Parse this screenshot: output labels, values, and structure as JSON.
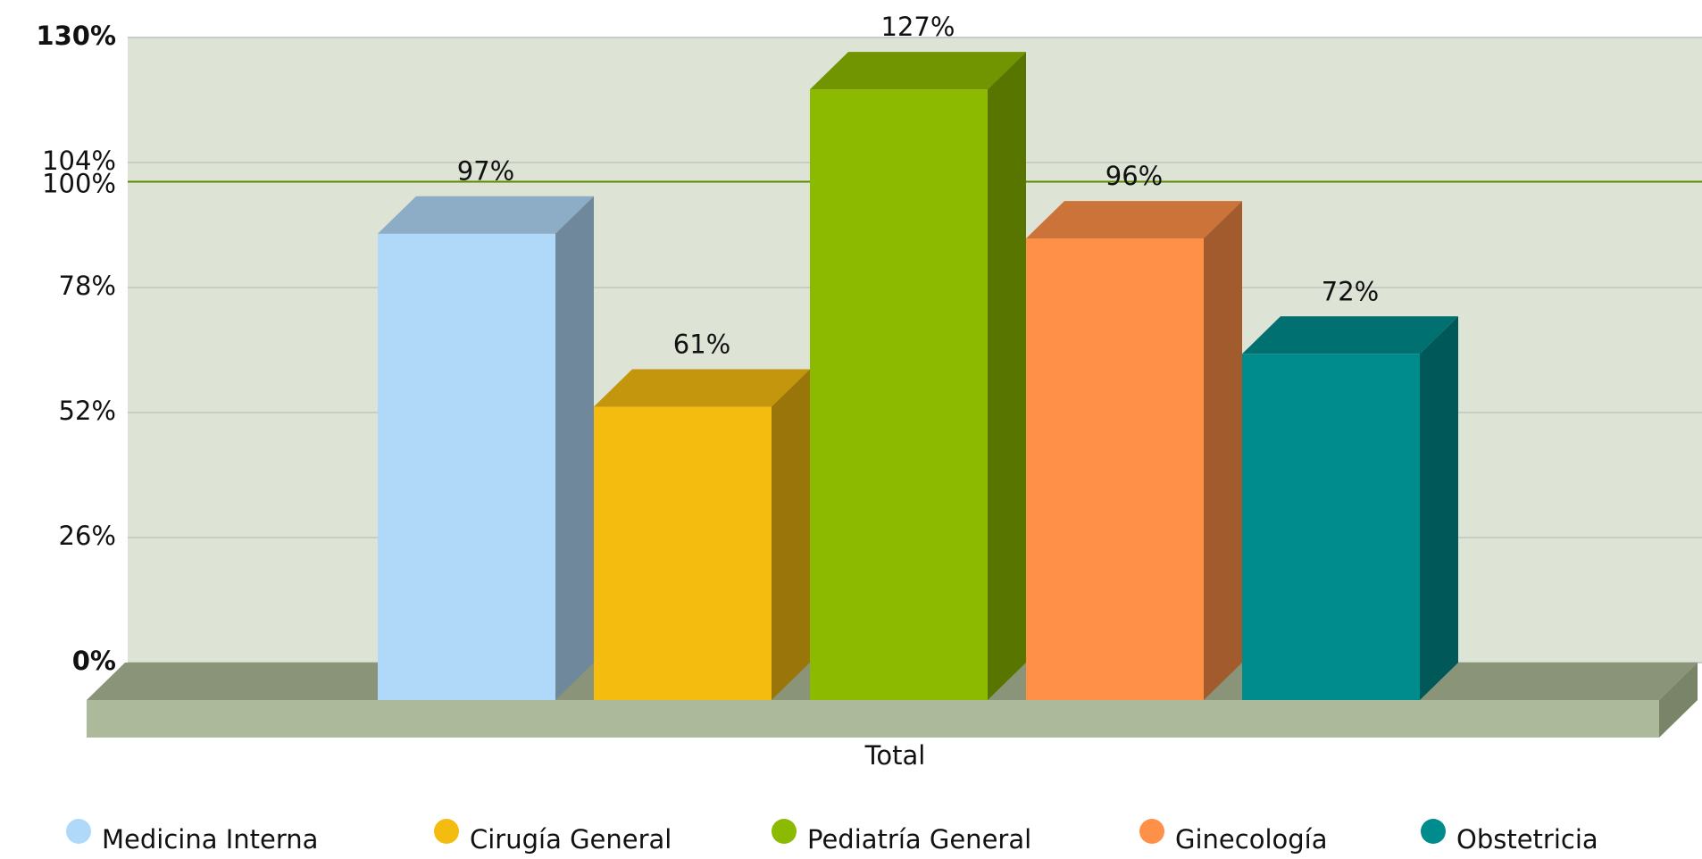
{
  "chart_data": {
    "type": "bar3d",
    "categories": [
      "Total"
    ],
    "series": [
      {
        "name": "Medicina Interna",
        "color": "#b0d8f8",
        "values": [
          97
        ],
        "value_labels": [
          "97%"
        ]
      },
      {
        "name": "Cirugía General",
        "color": "#f5bc10",
        "values": [
          61
        ],
        "value_labels": [
          "61%"
        ]
      },
      {
        "name": "Pediatría General",
        "color": "#8cba00",
        "values": [
          127
        ],
        "value_labels": [
          "127%"
        ]
      },
      {
        "name": "Ginecología",
        "color": "#ff9048",
        "values": [
          96
        ],
        "value_labels": [
          "96%"
        ]
      },
      {
        "name": "Obstetricia",
        "color": "#008c8c",
        "values": [
          72
        ],
        "value_labels": [
          "72%"
        ]
      }
    ],
    "ylim": [
      0,
      130
    ],
    "yticks": [
      {
        "value": 0,
        "label": "0%"
      },
      {
        "value": 26,
        "label": "26%"
      },
      {
        "value": 52,
        "label": "52%"
      },
      {
        "value": 78,
        "label": "78%"
      },
      {
        "value": 104,
        "label": "104%"
      },
      {
        "value": 130,
        "label": "130%"
      }
    ],
    "reference_line": {
      "value": 100,
      "label": "100%",
      "color": "#5a8a00"
    },
    "grid": true,
    "legend": "bottom"
  }
}
